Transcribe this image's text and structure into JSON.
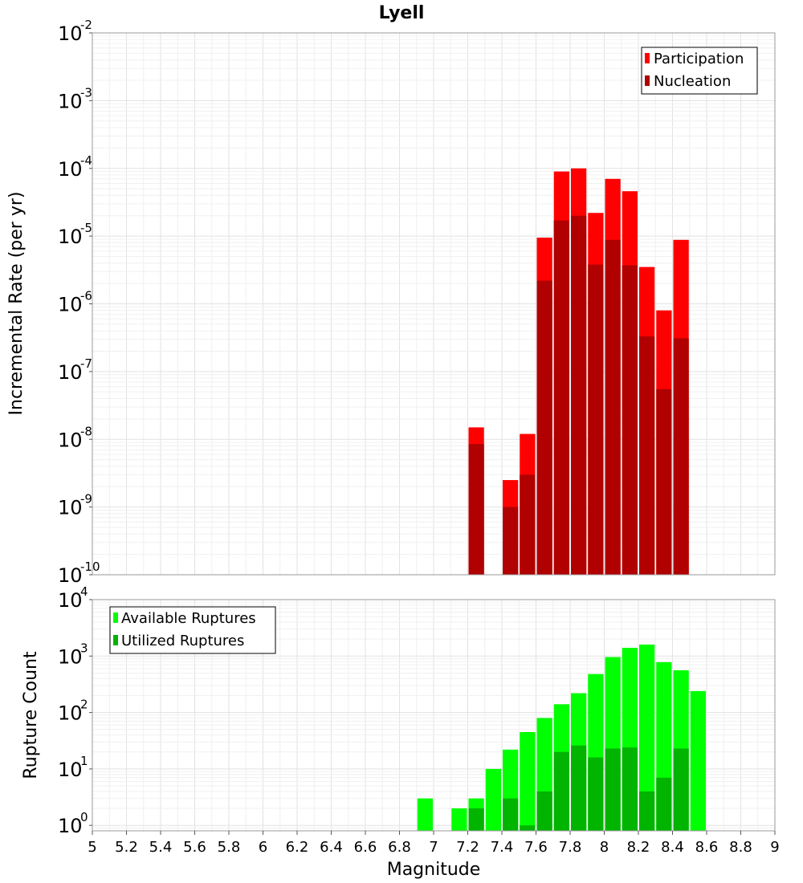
{
  "chart_data": [
    {
      "type": "bar",
      "title": "Lyell",
      "xlabel": "",
      "ylabel": "Incremental Rate (per yr)",
      "yscale": "log",
      "ylim": [
        1e-10,
        0.01
      ],
      "xlim": [
        5,
        9
      ],
      "bin_width": 0.1,
      "grid": true,
      "legend_position": "top-right",
      "y_tick_exponents": [
        -2,
        -3,
        -4,
        -5,
        -6,
        -7,
        -8,
        -9,
        -10
      ],
      "colors": {
        "Participation": "#ff0000",
        "Nucleation": "#b00000"
      },
      "series": [
        {
          "name": "Participation",
          "x": [
            7.25,
            7.45,
            7.55,
            7.65,
            7.75,
            7.85,
            7.95,
            8.05,
            8.15,
            8.25,
            8.35,
            8.45
          ],
          "values": [
            1.5e-08,
            2.5e-09,
            1.2e-08,
            9.5e-06,
            9e-05,
            0.0001,
            2.2e-05,
            7e-05,
            4.6e-05,
            3.5e-06,
            8e-07,
            8.8e-06
          ]
        },
        {
          "name": "Nucleation",
          "x": [
            7.25,
            7.45,
            7.55,
            7.65,
            7.75,
            7.85,
            7.95,
            8.05,
            8.15,
            8.25,
            8.35,
            8.45
          ],
          "values": [
            8.5e-09,
            1e-09,
            3e-09,
            2.2e-06,
            1.7e-05,
            2e-05,
            3.8e-06,
            8.8e-06,
            3.7e-06,
            3.3e-07,
            5.5e-08,
            3.1e-07
          ]
        }
      ]
    },
    {
      "type": "bar",
      "title": "",
      "xlabel": "Magnitude",
      "ylabel": "Rupture Count",
      "yscale": "log",
      "ylim": [
        0.8,
        10000
      ],
      "xlim": [
        5,
        9
      ],
      "bin_width": 0.1,
      "grid": true,
      "legend_position": "top-left",
      "x_ticks": [
        "5",
        "5.2",
        "5.4",
        "5.6",
        "5.8",
        "6",
        "6.2",
        "6.4",
        "6.6",
        "6.8",
        "7",
        "7.2",
        "7.4",
        "7.6",
        "7.8",
        "8",
        "8.2",
        "8.4",
        "8.6",
        "8.8",
        "9"
      ],
      "y_tick_exponents": [
        4,
        3,
        2,
        1,
        0
      ],
      "colors": {
        "Available Ruptures": "#00ff00",
        "Utilized Ruptures": "#00b400"
      },
      "series": [
        {
          "name": "Available Ruptures",
          "x": [
            6.95,
            7.15,
            7.25,
            7.35,
            7.45,
            7.55,
            7.65,
            7.75,
            7.85,
            7.95,
            8.05,
            8.15,
            8.25,
            8.35,
            8.45,
            8.55
          ],
          "values": [
            3,
            2,
            3,
            10,
            22,
            45,
            80,
            140,
            220,
            480,
            960,
            1400,
            1600,
            780,
            560,
            240
          ]
        },
        {
          "name": "Utilized Ruptures",
          "x": [
            7.25,
            7.45,
            7.55,
            7.65,
            7.75,
            7.85,
            7.95,
            8.05,
            8.15,
            8.25,
            8.35,
            8.45
          ],
          "values": [
            2,
            3,
            1,
            4,
            20,
            26,
            16,
            23,
            24,
            4,
            7,
            23
          ]
        }
      ]
    }
  ]
}
